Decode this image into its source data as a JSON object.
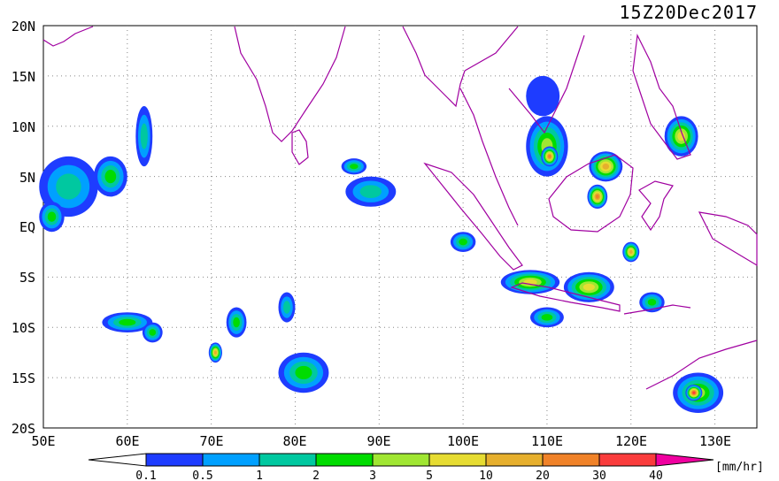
{
  "map": {
    "timestamp": "15Z20Dec2017",
    "lat_labels": [
      "20N",
      "15N",
      "10N",
      "5N",
      "EQ",
      "5S",
      "10S",
      "15S",
      "20S"
    ],
    "lon_labels": [
      "50E",
      "60E",
      "70E",
      "80E",
      "90E",
      "100E",
      "110E",
      "120E",
      "130E"
    ],
    "lon_range": [
      50,
      135
    ],
    "lat_range": [
      -20,
      20
    ],
    "grid": true,
    "coastline_color": "#a000a0"
  },
  "colorbar": {
    "unit": "[mm/hr]",
    "tick_labels": [
      "0.1",
      "0.5",
      "1",
      "2",
      "3",
      "5",
      "10",
      "20",
      "30",
      "40"
    ],
    "colors": [
      "#ffffff",
      "#1e3cff",
      "#00a0ff",
      "#00c8a0",
      "#00dc00",
      "#a0e632",
      "#e6dc32",
      "#e6af2d",
      "#f08228",
      "#fa3c3c",
      "#f000a0"
    ]
  },
  "rain_cells": [
    {
      "name": "rain-cell-arabian-sea",
      "lon": 53,
      "lat": 4,
      "rx": 3.5,
      "ry": 3,
      "level": 3
    },
    {
      "name": "rain-cell-arabian-sea-2",
      "lon": 58,
      "lat": 5,
      "rx": 2,
      "ry": 2,
      "level": 4
    },
    {
      "name": "rain-cell-arabian-ne",
      "lon": 62,
      "lat": 9,
      "rx": 1,
      "ry": 3,
      "level": 3
    },
    {
      "name": "rain-cell-equator-west",
      "lon": 51,
      "lat": 1,
      "rx": 1.5,
      "ry": 1.5,
      "level": 4
    },
    {
      "name": "rain-cell-sri-lanka-east",
      "lon": 89,
      "lat": 3.5,
      "rx": 3,
      "ry": 1.5,
      "level": 3
    },
    {
      "name": "rain-cell-bay-of-bengal",
      "lon": 87,
      "lat": 6,
      "rx": 1.5,
      "ry": 0.8,
      "level": 4
    },
    {
      "name": "rain-cell-south-china-sea",
      "lon": 110,
      "lat": 8,
      "rx": 2.5,
      "ry": 3,
      "level": 5
    },
    {
      "name": "rain-cell-south-china-sea-core",
      "lon": 110.3,
      "lat": 7,
      "rx": 1,
      "ry": 1,
      "level": 8
    },
    {
      "name": "rain-cell-gulf-thailand",
      "lon": 109.5,
      "lat": 13,
      "rx": 2,
      "ry": 2,
      "level": 1
    },
    {
      "name": "rain-cell-borneo-north",
      "lon": 117,
      "lat": 6,
      "rx": 2,
      "ry": 1.5,
      "level": 7
    },
    {
      "name": "rain-cell-borneo-east",
      "lon": 116,
      "lat": 3,
      "rx": 1.2,
      "ry": 1.2,
      "level": 8
    },
    {
      "name": "rain-cell-philippines",
      "lon": 126,
      "lat": 9,
      "rx": 2,
      "ry": 2,
      "level": 6
    },
    {
      "name": "rain-cell-sumatra",
      "lon": 100,
      "lat": -1.5,
      "rx": 1.5,
      "ry": 1,
      "level": 4
    },
    {
      "name": "rain-cell-java-sea",
      "lon": 108,
      "lat": -5.5,
      "rx": 3.5,
      "ry": 1.2,
      "level": 6
    },
    {
      "name": "rain-cell-java-sea-east",
      "lon": 115,
      "lat": -6,
      "rx": 3,
      "ry": 1.5,
      "level": 6
    },
    {
      "name": "rain-cell-java-south",
      "lon": 110,
      "lat": -9,
      "rx": 2,
      "ry": 1,
      "level": 4
    },
    {
      "name": "rain-cell-sulawesi",
      "lon": 120,
      "lat": -2.5,
      "rx": 1,
      "ry": 1,
      "level": 7
    },
    {
      "name": "rain-cell-indian-ocean-1",
      "lon": 60,
      "lat": -9.5,
      "rx": 3,
      "ry": 1,
      "level": 4
    },
    {
      "name": "rain-cell-indian-ocean-2",
      "lon": 63,
      "lat": -10.5,
      "rx": 1.2,
      "ry": 1,
      "level": 4
    },
    {
      "name": "rain-cell-indian-ocean-3",
      "lon": 73,
      "lat": -9.5,
      "rx": 1.2,
      "ry": 1.5,
      "level": 4
    },
    {
      "name": "rain-cell-indian-ocean-4",
      "lon": 70.5,
      "lat": -12.5,
      "rx": 0.8,
      "ry": 1,
      "level": 7
    },
    {
      "name": "rain-cell-indian-ocean-5",
      "lon": 81,
      "lat": -14.5,
      "rx": 3,
      "ry": 2,
      "level": 4
    },
    {
      "name": "rain-cell-indian-ocean-6",
      "lon": 79,
      "lat": -8,
      "rx": 1,
      "ry": 1.5,
      "level": 3
    },
    {
      "name": "rain-cell-australia-north",
      "lon": 128,
      "lat": -16.5,
      "rx": 3,
      "ry": 2,
      "level": 5
    },
    {
      "name": "rain-cell-australia-core",
      "lon": 127.5,
      "lat": -16.5,
      "rx": 1,
      "ry": 0.8,
      "level": 9
    },
    {
      "name": "rain-cell-timor",
      "lon": 122.5,
      "lat": -7.5,
      "rx": 1.5,
      "ry": 1,
      "level": 4
    }
  ]
}
